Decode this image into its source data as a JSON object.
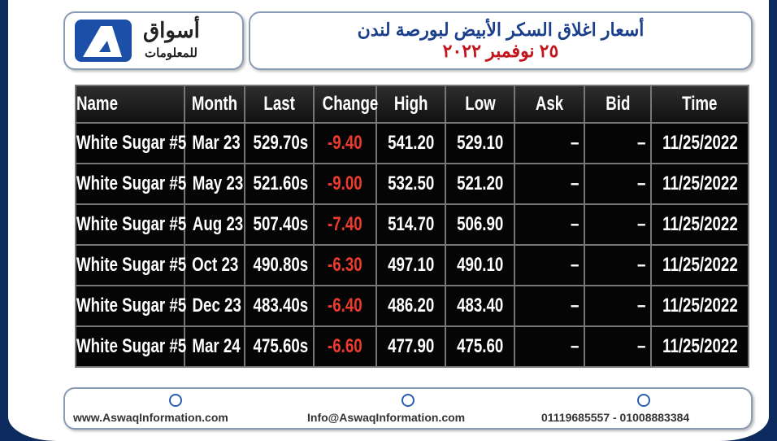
{
  "header": {
    "logo_name": "أسواق",
    "logo_sub": "للمعلومات",
    "title": "أسعار اغلاق السكر الأبيض لبورصة لندن",
    "subtitle": "٢٥ نوفمبر ٢٠٢٢"
  },
  "table": {
    "columns": [
      "Name",
      "Month",
      "Last",
      "Change",
      "High",
      "Low",
      "Ask",
      "Bid",
      "Time"
    ],
    "rows": [
      [
        "White Sugar #5",
        "Mar 23",
        "529.70s",
        "-9.40",
        "541.20",
        "529.10",
        "–",
        "–",
        "11/25/2022"
      ],
      [
        "White Sugar #5",
        "May 23",
        "521.60s",
        "-9.00",
        "532.50",
        "521.20",
        "–",
        "–",
        "11/25/2022"
      ],
      [
        "White Sugar #5",
        "Aug 23",
        "507.40s",
        "-7.40",
        "514.70",
        "506.90",
        "–",
        "–",
        "11/25/2022"
      ],
      [
        "White Sugar #5",
        "Oct 23",
        "490.80s",
        "-6.30",
        "497.10",
        "490.10",
        "–",
        "–",
        "11/25/2022"
      ],
      [
        "White Sugar #5",
        "Dec 23",
        "483.40s",
        "-6.40",
        "486.20",
        "483.40",
        "–",
        "–",
        "11/25/2022"
      ],
      [
        "White Sugar #5",
        "Mar 24",
        "475.60s",
        "-6.60",
        "477.90",
        "475.60",
        "–",
        "–",
        "11/25/2022"
      ]
    ]
  },
  "footer": {
    "website": "www.AswaqInformation.com",
    "email": "Info@AswaqInformation.com",
    "phone": "01119685557 - 01008883384"
  }
}
